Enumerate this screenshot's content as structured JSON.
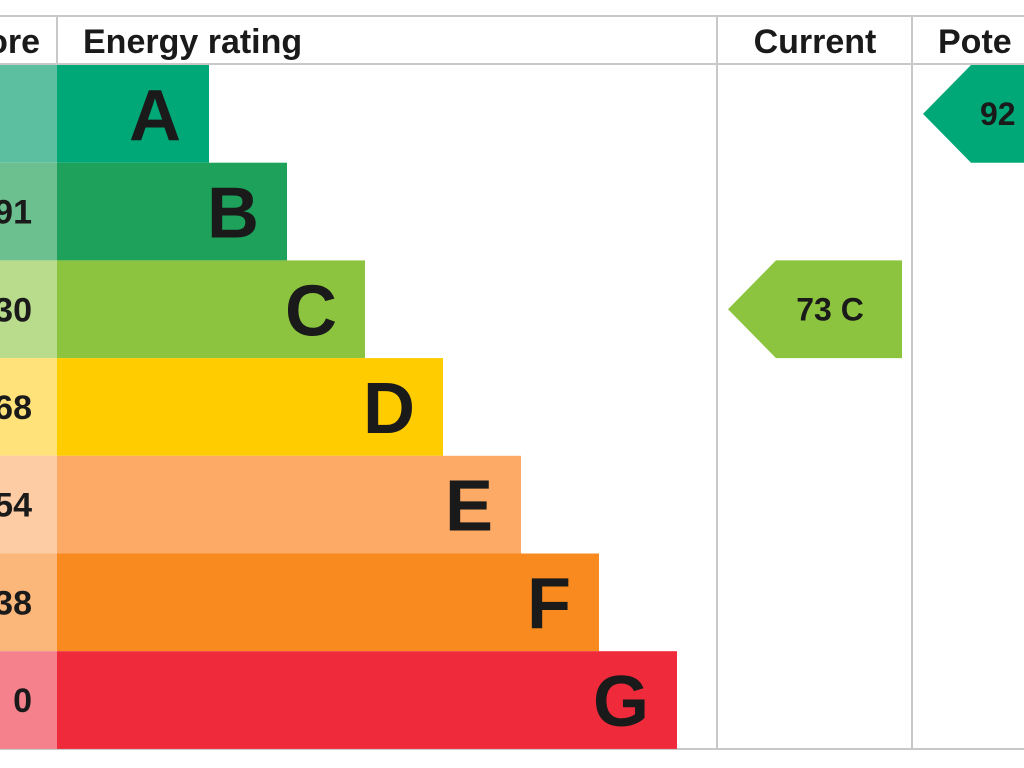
{
  "chart_data": {
    "type": "bar",
    "columns": {
      "score": "ore",
      "rating": "Energy rating",
      "current": "Current",
      "potential": "Pote"
    },
    "bands": [
      {
        "letter": "A",
        "score": "",
        "color": "#00a877",
        "score_bg": "#5bbfa0"
      },
      {
        "letter": "B",
        "score": "91",
        "color": "#1da15b",
        "score_bg": "#6cbf8e"
      },
      {
        "letter": "C",
        "score": "30",
        "color": "#8cc43f",
        "score_bg": "#b8db8c"
      },
      {
        "letter": "D",
        "score": "68",
        "color": "#ffcc00",
        "score_bg": "#ffe27a"
      },
      {
        "letter": "E",
        "score": "54",
        "color": "#fcaa65",
        "score_bg": "#fdcba4"
      },
      {
        "letter": "F",
        "score": "38",
        "color": "#f88a1f",
        "score_bg": "#fbb77a"
      },
      {
        "letter": "G",
        "score": "0",
        "color": "#ef2a3b",
        "score_bg": "#f5818c"
      }
    ],
    "current": {
      "value": 73,
      "letter": "C",
      "band": "C",
      "label": "73  C",
      "color": "#8cc43f"
    },
    "potential": {
      "value": 92,
      "letter": "A",
      "band": "A",
      "label": "92",
      "color": "#00a877"
    }
  }
}
